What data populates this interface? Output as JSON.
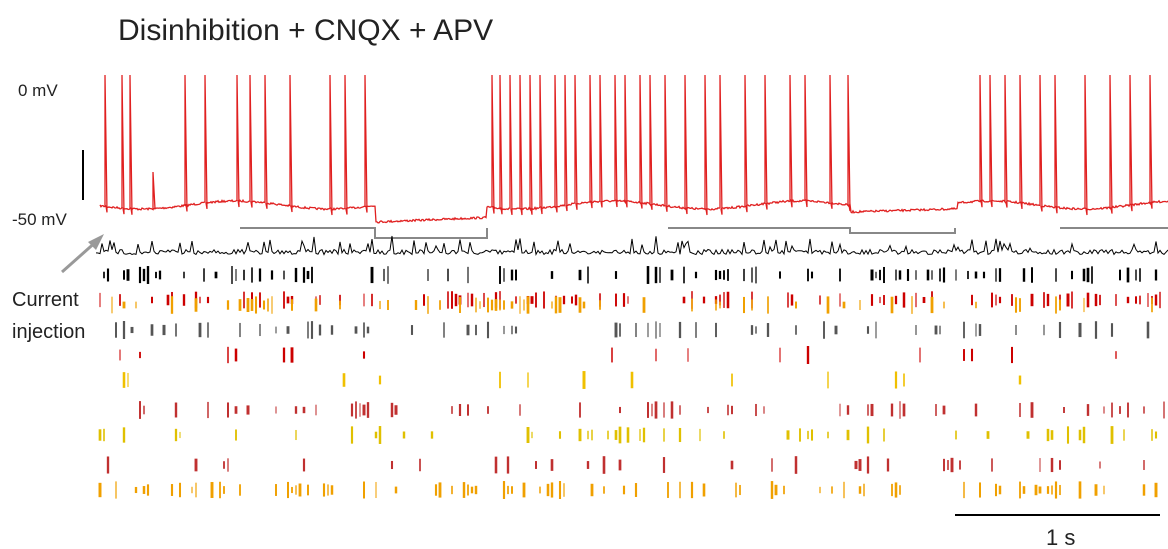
{
  "title": "Disinhibition + CNQX + APV",
  "labels": {
    "top": "0 mV",
    "bottom": "-50 mV",
    "annotation": [
      "Current",
      "injection"
    ],
    "scale": "1 s"
  }
}
